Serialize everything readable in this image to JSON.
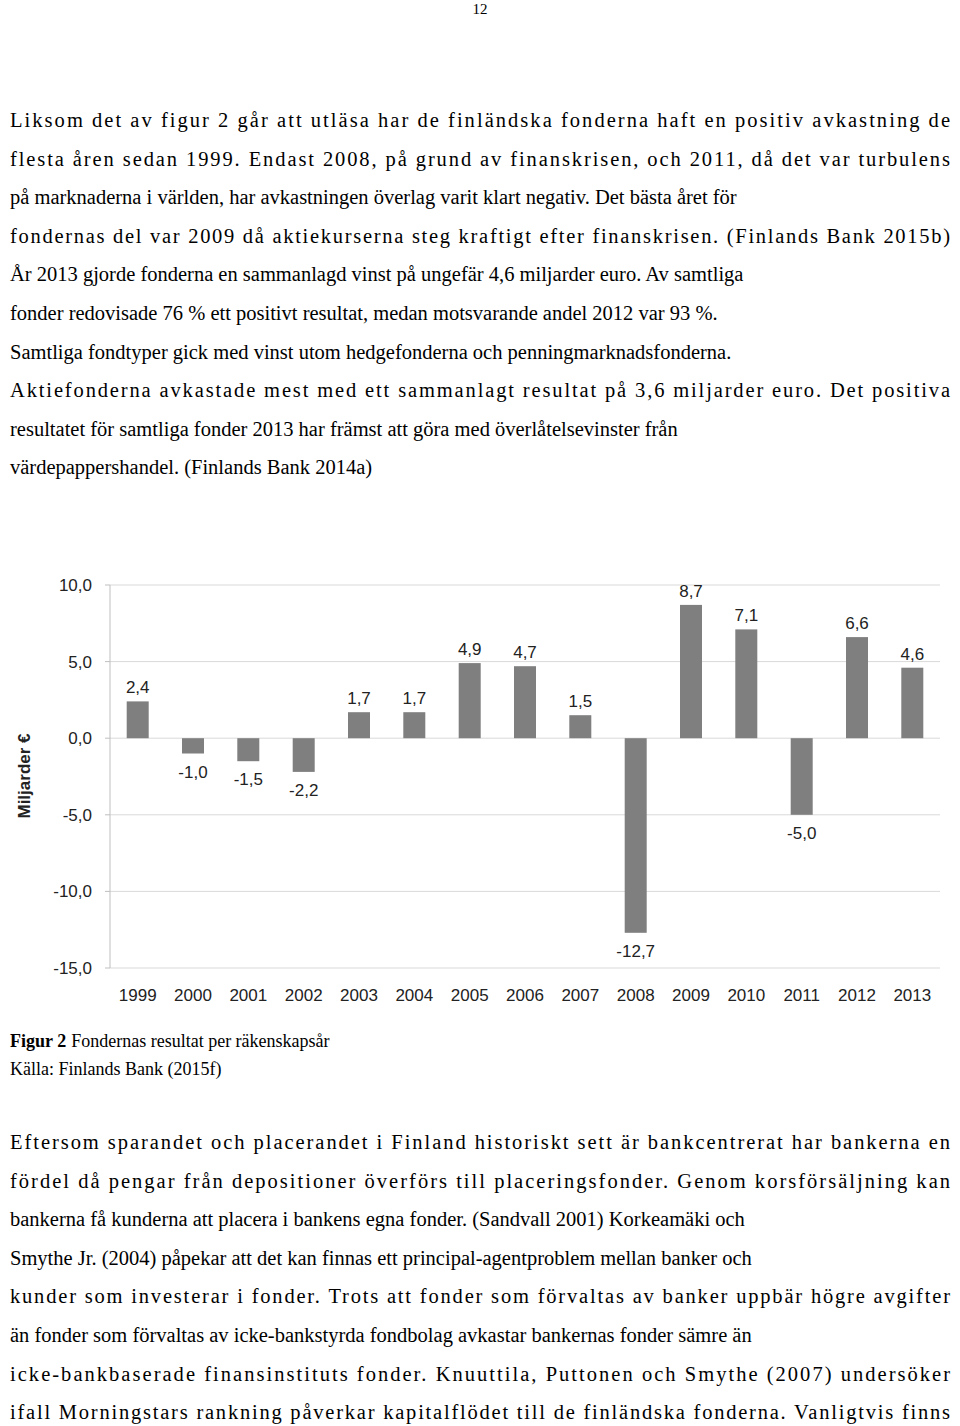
{
  "page_number": "12",
  "paragraphs_before": [
    {
      "lines": [
        "Liksom det av figur 2 går att utläsa har de finländska fonderna haft en positiv avkastning de",
        "flesta åren sedan 1999. Endast 2008, på grund av finanskrisen, och 2011, då det var turbulens",
        "på marknaderna i världen, har avkastningen överlag varit klart negativ. Det bästa året för",
        "fondernas del var 2009 då aktiekurserna steg kraftigt efter finanskrisen. (Finlands Bank 2015b)",
        "År 2013 gjorde fonderna en sammanlagd vinst på ungefär 4,6 miljarder euro. Av samtliga",
        "fonder redovisade 76 % ett positivt resultat, medan motsvarande andel 2012 var 93 %.",
        "Samtliga fondtyper gick med vinst utom hedgefonderna och penningmarknadsfonderna.",
        "Aktiefonderna avkastade mest med ett sammanlagt resultat på 3,6 miljarder euro. Det positiva",
        "resultatet för samtliga fonder 2013 har främst att göra med överlåtelsevinster från",
        "värdepappershandel. (Finlands Bank 2014a)"
      ]
    }
  ],
  "chart_data": {
    "type": "bar",
    "y_label": "Miljarder €",
    "categories": [
      "1999",
      "2000",
      "2001",
      "2002",
      "2003",
      "2004",
      "2005",
      "2006",
      "2007",
      "2008",
      "2009",
      "2010",
      "2011",
      "2012",
      "2013"
    ],
    "values": [
      2.4,
      -1.0,
      -1.5,
      -2.2,
      1.7,
      1.7,
      4.9,
      4.7,
      1.5,
      -12.7,
      8.7,
      7.1,
      -5.0,
      6.6,
      4.6
    ],
    "value_labels": [
      "2,4",
      "-1,0",
      "-1,5",
      "-2,2",
      "1,7",
      "1,7",
      "4,9",
      "4,7",
      "1,5",
      "-12,7",
      "8,7",
      "7,1",
      "-5,0",
      "6,6",
      "4,6"
    ],
    "color": "#7f7f7f",
    "ylim": [
      -15,
      10
    ],
    "yticks": [
      {
        "value": -15,
        "label": "-15,0"
      },
      {
        "value": -10,
        "label": "-10,0"
      },
      {
        "value": -5,
        "label": "-5,0"
      },
      {
        "value": 0,
        "label": "0,0"
      },
      {
        "value": 5,
        "label": "5,0"
      },
      {
        "value": 10,
        "label": "10,0"
      }
    ],
    "grid": true,
    "data_labels": true
  },
  "caption": {
    "label": "Figur 2",
    "text": "Fondernas resultat per räkenskapsår",
    "source": "Källa: Finlands Bank (2015f)"
  },
  "paragraphs_after": [
    {
      "lines": [
        "Eftersom sparandet och placerandet i Finland historiskt sett är bankcentrerat har bankerna en",
        "fördel då pengar från depositioner överförs till placeringsfonder. Genom korsförsäljning kan",
        "bankerna få kunderna att placera i bankens egna fonder. (Sandvall 2001) Korkeamäki och",
        "Smythe Jr. (2004) påpekar att det kan finnas ett principal-agentproblem mellan banker och",
        "kunder som investerar i fonder. Trots att fonder som förvaltas av banker uppbär högre avgifter",
        "än fonder som förvaltas av icke-bankstyrda fondbolag avkastar bankernas fonder sämre än",
        "icke-bankbaserade finansinstituts fonder. Knuuttila, Puttonen och Smythe (2007) undersöker",
        "ifall Morningstars rankning påverkar kapitalflödet till de finländska fonderna. Vanligtvis finns"
      ]
    }
  ]
}
